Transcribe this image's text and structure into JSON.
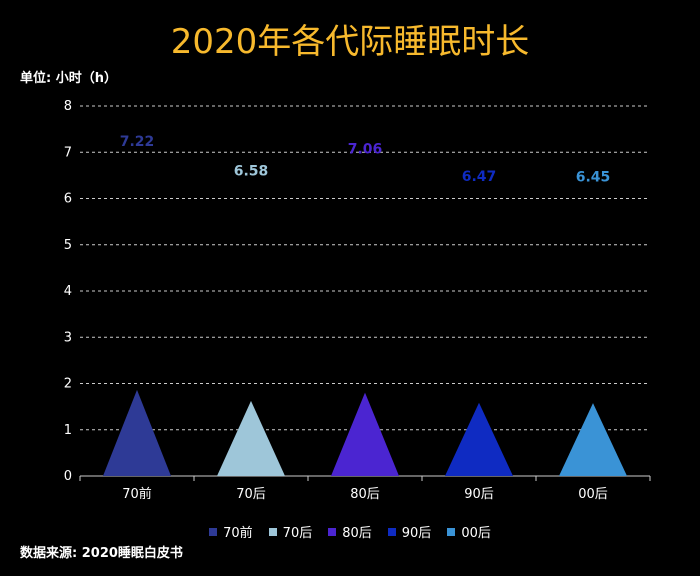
{
  "title": "2020年各代际睡眠时长",
  "unit_label": "单位: 小时（h）",
  "source_note": "数据来源: 2020睡眠白皮书",
  "chart_data": {
    "type": "bar",
    "title": "2020年各代际睡眠时长",
    "categories": [
      "70前",
      "70后",
      "80后",
      "90后",
      "00后"
    ],
    "values": [
      7.22,
      6.58,
      7.06,
      6.47,
      6.45
    ],
    "value_labels": [
      "7.22",
      "6.58",
      "7.06",
      "6.47",
      "6.45"
    ],
    "colors": [
      "#2e3a96",
      "#9ec6d9",
      "#4b25d1",
      "#0f2bc2",
      "#3a93d6"
    ],
    "ylim": [
      0,
      8
    ],
    "yticks": [
      0,
      1,
      2,
      3,
      4,
      5,
      6,
      7,
      8
    ],
    "ylabel": "单位: 小时（h）",
    "grid": true,
    "legend_position": "bottom",
    "mark_shape": "triangle"
  }
}
